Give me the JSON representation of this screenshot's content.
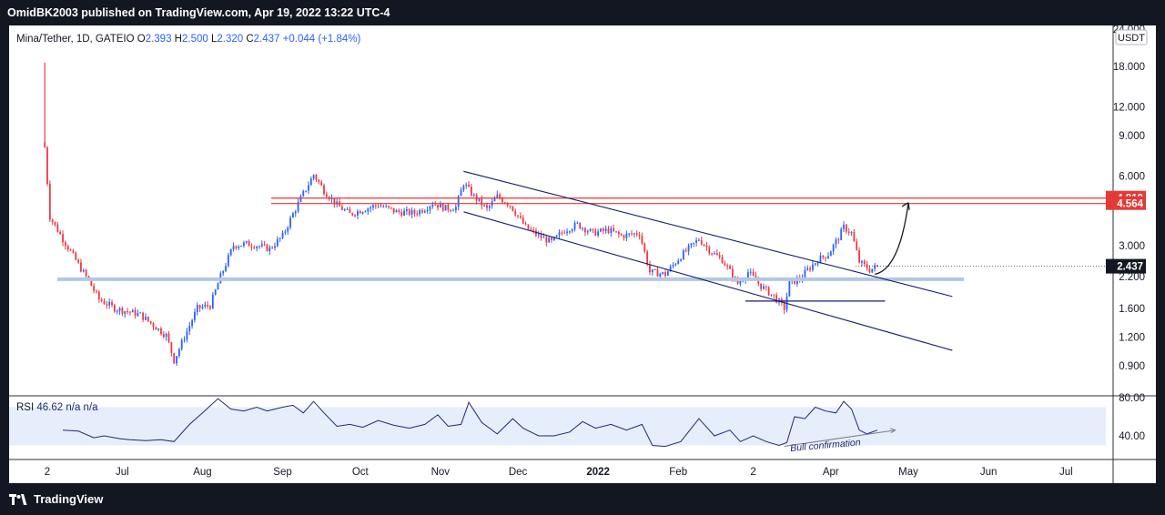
{
  "header": {
    "publisher": "OmidBK2003",
    "published_text": "published on TradingView.com, Apr 19, 2022 13:22 UTC-4"
  },
  "footer": {
    "brand": "TradingView"
  },
  "legend": {
    "symbol": "Mina/Tether, 1D, GATEIO",
    "o_label": "O",
    "o": "2.393",
    "h_label": "H",
    "h": "2.500",
    "l_label": "L",
    "l": "2.320",
    "c_label": "C",
    "c": "2.437",
    "change": "+0.044 (+1.84%)"
  },
  "currency": "USDT",
  "rsi_legend": {
    "name": "RSI",
    "value": "46.62",
    "na1": "n/a",
    "na2": "n/a"
  },
  "annotation": "Bull confirmation",
  "colors": {
    "up": "#2962ff",
    "down": "#f23645",
    "channel": "#131f6b",
    "resistance": "#e53935",
    "support": "#b3c7e6",
    "rsi": "#1e2a6e",
    "rsi_band": "#e6eefc",
    "last_price": "#131722"
  },
  "chart_data": [
    {
      "type": "candlestick",
      "title": "Mina/Tether, 1D, GATEIO",
      "y_scale": "log",
      "y_ticks": [
        "24.000",
        "18.000",
        "12.000",
        "9.000",
        "6.000",
        "3.000",
        "2.200",
        "1.600",
        "1.200",
        "0.900"
      ],
      "y_tick_values": [
        24,
        18,
        12,
        9,
        6,
        3,
        2.2,
        1.6,
        1.2,
        0.9
      ],
      "x_ticks": [
        "2",
        "Jul",
        "Aug",
        "Sep",
        "Oct",
        "Nov",
        "Dec",
        "2022",
        "Feb",
        "2",
        "Apr",
        "May",
        "Jun",
        "Jul"
      ],
      "x_tick_dates": [
        "2021-06-02",
        "2021-07-01",
        "2021-08-01",
        "2021-09-01",
        "2021-10-01",
        "2021-11-01",
        "2021-12-01",
        "2022-01-01",
        "2022-02-01",
        "2022-03-02",
        "2022-04-01",
        "2022-05-01",
        "2022-06-01",
        "2022-07-01"
      ],
      "last_price": "2.437",
      "resistance_levels": [
        "4.819",
        "4.564"
      ],
      "support_level": 2.14,
      "close_path": [
        [
          "2021-06-01",
          8.0
        ],
        [
          "2021-06-03",
          4.0
        ],
        [
          "2021-06-08",
          3.2
        ],
        [
          "2021-06-12",
          2.7
        ],
        [
          "2021-06-18",
          2.1
        ],
        [
          "2021-06-22",
          1.75
        ],
        [
          "2021-06-28",
          1.6
        ],
        [
          "2021-07-03",
          1.55
        ],
        [
          "2021-07-08",
          1.5
        ],
        [
          "2021-07-13",
          1.35
        ],
        [
          "2021-07-18",
          1.22
        ],
        [
          "2021-07-21",
          0.95
        ],
        [
          "2021-07-25",
          1.2
        ],
        [
          "2021-07-30",
          1.6
        ],
        [
          "2021-08-04",
          1.65
        ],
        [
          "2021-08-08",
          2.2
        ],
        [
          "2021-08-13",
          3.0
        ],
        [
          "2021-08-18",
          3.05
        ],
        [
          "2021-08-22",
          3.0
        ],
        [
          "2021-08-27",
          2.9
        ],
        [
          "2021-09-01",
          3.3
        ],
        [
          "2021-09-04",
          3.9
        ],
        [
          "2021-09-08",
          4.8
        ],
        [
          "2021-09-13",
          6.1
        ],
        [
          "2021-09-17",
          5.2
        ],
        [
          "2021-09-22",
          4.5
        ],
        [
          "2021-09-27",
          4.1
        ],
        [
          "2021-10-02",
          4.3
        ],
        [
          "2021-10-08",
          4.5
        ],
        [
          "2021-10-15",
          4.2
        ],
        [
          "2021-10-22",
          4.15
        ],
        [
          "2021-10-26",
          4.35
        ],
        [
          "2021-10-29",
          4.6
        ],
        [
          "2021-11-03",
          4.35
        ],
        [
          "2021-11-07",
          4.4
        ],
        [
          "2021-11-10",
          5.6
        ],
        [
          "2021-11-14",
          4.9
        ],
        [
          "2021-11-19",
          4.3
        ],
        [
          "2021-11-23",
          4.9
        ],
        [
          "2021-11-28",
          4.5
        ],
        [
          "2021-12-04",
          3.6
        ],
        [
          "2021-12-09",
          3.3
        ],
        [
          "2021-12-14",
          3.1
        ],
        [
          "2021-12-19",
          3.5
        ],
        [
          "2021-12-24",
          3.7
        ],
        [
          "2021-12-30",
          3.4
        ],
        [
          "2022-01-05",
          3.5
        ],
        [
          "2022-01-10",
          3.3
        ],
        [
          "2022-01-17",
          3.4
        ],
        [
          "2022-01-21",
          2.3
        ],
        [
          "2022-01-27",
          2.25
        ],
        [
          "2022-02-02",
          2.7
        ],
        [
          "2022-02-09",
          3.2
        ],
        [
          "2022-02-14",
          2.8
        ],
        [
          "2022-02-18",
          2.6
        ],
        [
          "2022-02-24",
          2.05
        ],
        [
          "2022-02-28",
          2.3
        ],
        [
          "2022-03-05",
          2.0
        ],
        [
          "2022-03-10",
          1.8
        ],
        [
          "2022-03-14",
          1.6
        ],
        [
          "2022-03-16",
          2.05
        ],
        [
          "2022-03-20",
          2.15
        ],
        [
          "2022-03-23",
          2.35
        ],
        [
          "2022-03-27",
          2.6
        ],
        [
          "2022-03-31",
          2.75
        ],
        [
          "2022-04-04",
          3.25
        ],
        [
          "2022-04-06",
          3.6
        ],
        [
          "2022-04-09",
          3.4
        ],
        [
          "2022-04-12",
          2.55
        ],
        [
          "2022-04-16",
          2.35
        ],
        [
          "2022-04-19",
          2.437
        ]
      ],
      "channel_lines": [
        [
          [
            "2021-11-10",
            6.3
          ],
          [
            "2022-05-18",
            1.8
          ]
        ],
        [
          [
            "2021-11-10",
            4.2
          ],
          [
            "2022-05-18",
            1.05
          ]
        ]
      ],
      "local_support": [
        [
          "2022-02-27",
          1.72
        ],
        [
          "2022-04-22",
          1.72
        ]
      ],
      "projection": [
        [
          "2022-04-18",
          2.25
        ],
        [
          "2022-05-01",
          4.6
        ]
      ]
    },
    {
      "type": "line",
      "title": "RSI",
      "y_ticks": [
        "80.00",
        "40.00"
      ],
      "ylim": [
        20,
        85
      ],
      "band": [
        30,
        70
      ],
      "series": [
        {
          "name": "RSI",
          "values": [
            [
              "2021-06-08",
              46
            ],
            [
              "2021-06-14",
              45
            ],
            [
              "2021-06-20",
              38
            ],
            [
              "2021-06-24",
              40
            ],
            [
              "2021-06-30",
              37
            ],
            [
              "2021-07-04",
              36
            ],
            [
              "2021-07-10",
              35
            ],
            [
              "2021-07-16",
              36
            ],
            [
              "2021-07-21",
              34
            ],
            [
              "2021-07-27",
              52
            ],
            [
              "2021-08-01",
              64
            ],
            [
              "2021-08-07",
              79
            ],
            [
              "2021-08-12",
              68
            ],
            [
              "2021-08-17",
              66
            ],
            [
              "2021-08-22",
              70
            ],
            [
              "2021-08-26",
              66
            ],
            [
              "2021-09-01",
              70
            ],
            [
              "2021-09-05",
              72
            ],
            [
              "2021-09-09",
              64
            ],
            [
              "2021-09-13",
              76
            ],
            [
              "2021-09-17",
              64
            ],
            [
              "2021-09-22",
              50
            ],
            [
              "2021-09-27",
              52
            ],
            [
              "2021-10-02",
              49
            ],
            [
              "2021-10-08",
              56
            ],
            [
              "2021-10-14",
              51
            ],
            [
              "2021-10-20",
              48
            ],
            [
              "2021-10-26",
              52
            ],
            [
              "2021-10-31",
              62
            ],
            [
              "2021-11-04",
              50
            ],
            [
              "2021-11-09",
              52
            ],
            [
              "2021-11-12",
              75
            ],
            [
              "2021-11-17",
              54
            ],
            [
              "2021-11-23",
              42
            ],
            [
              "2021-11-29",
              58
            ],
            [
              "2021-12-03",
              48
            ],
            [
              "2021-12-09",
              40
            ],
            [
              "2021-12-15",
              40
            ],
            [
              "2021-12-21",
              44
            ],
            [
              "2021-12-26",
              55
            ],
            [
              "2021-12-31",
              48
            ],
            [
              "2022-01-06",
              52
            ],
            [
              "2022-01-12",
              46
            ],
            [
              "2022-01-18",
              52
            ],
            [
              "2022-01-22",
              30
            ],
            [
              "2022-01-27",
              29
            ],
            [
              "2022-02-02",
              34
            ],
            [
              "2022-02-09",
              58
            ],
            [
              "2022-02-15",
              40
            ],
            [
              "2022-02-21",
              46
            ],
            [
              "2022-02-25",
              34
            ],
            [
              "2022-03-02",
              40
            ],
            [
              "2022-03-07",
              34
            ],
            [
              "2022-03-12",
              30
            ],
            [
              "2022-03-15",
              33
            ],
            [
              "2022-03-18",
              60
            ],
            [
              "2022-03-22",
              58
            ],
            [
              "2022-03-26",
              70
            ],
            [
              "2022-03-30",
              66
            ],
            [
              "2022-04-03",
              64
            ],
            [
              "2022-04-06",
              76
            ],
            [
              "2022-04-09",
              68
            ],
            [
              "2022-04-12",
              46
            ],
            [
              "2022-04-15",
              42
            ],
            [
              "2022-04-19",
              46
            ]
          ]
        }
      ],
      "trendline": [
        [
          "2022-03-14",
          29
        ],
        [
          "2022-04-26",
          46
        ]
      ],
      "annotation": "Bull confirmation"
    }
  ]
}
